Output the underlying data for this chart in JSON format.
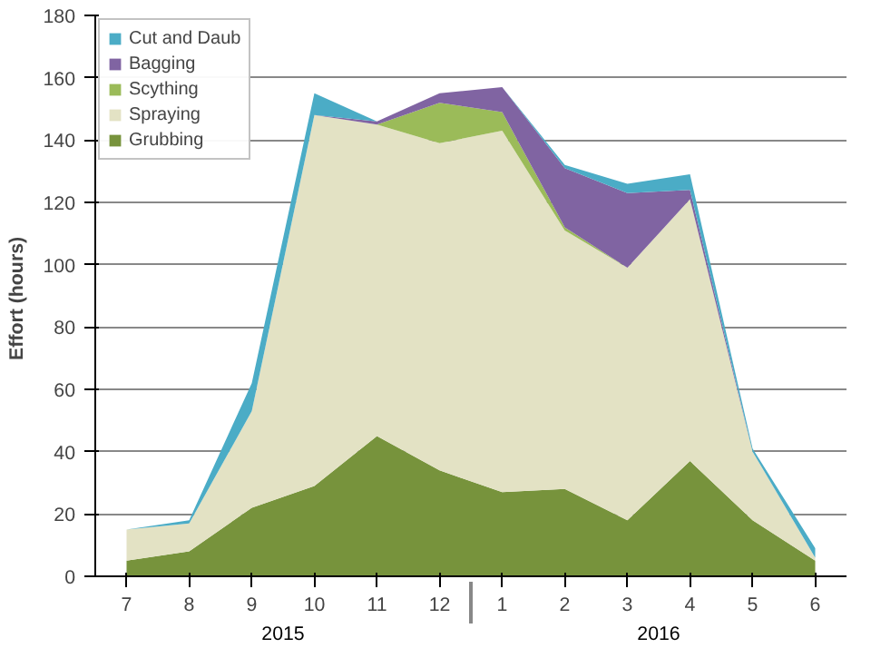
{
  "chart_data": {
    "type": "area",
    "stacked": true,
    "ylabel": "Effort  (hours)",
    "categories": [
      "7",
      "8",
      "9",
      "10",
      "11",
      "12",
      "1",
      "2",
      "3",
      "4",
      "5",
      "6"
    ],
    "annotations": [
      "2015",
      "2016"
    ],
    "series": [
      {
        "name": "Grubbing",
        "color": "#77933c",
        "values": [
          5,
          8,
          22,
          29,
          45,
          34,
          27,
          28,
          18,
          37,
          18,
          5
        ]
      },
      {
        "name": "Spraying",
        "color": "#e3e2c4",
        "values": [
          10,
          9,
          31,
          119,
          100,
          105,
          116,
          83,
          81,
          84,
          22,
          1
        ]
      },
      {
        "name": "Scything",
        "color": "#9bbb59",
        "values": [
          null,
          null,
          null,
          null,
          0,
          13,
          6,
          1,
          0,
          null,
          null,
          null
        ]
      },
      {
        "name": "Bagging",
        "color": "#8064a2",
        "values": [
          null,
          null,
          null,
          0,
          1,
          3,
          8,
          19,
          24,
          3,
          0,
          null
        ]
      },
      {
        "name": "Cut and Daub",
        "color": "#4bacc6",
        "values": [
          0,
          1,
          9,
          7,
          0,
          null,
          0,
          1,
          3,
          5,
          1,
          3
        ]
      }
    ],
    "ylim": [
      0,
      180
    ],
    "yticks": [
      0,
      20,
      40,
      60,
      80,
      100,
      120,
      140,
      160,
      180
    ],
    "grid": "y",
    "legend": "top left"
  }
}
